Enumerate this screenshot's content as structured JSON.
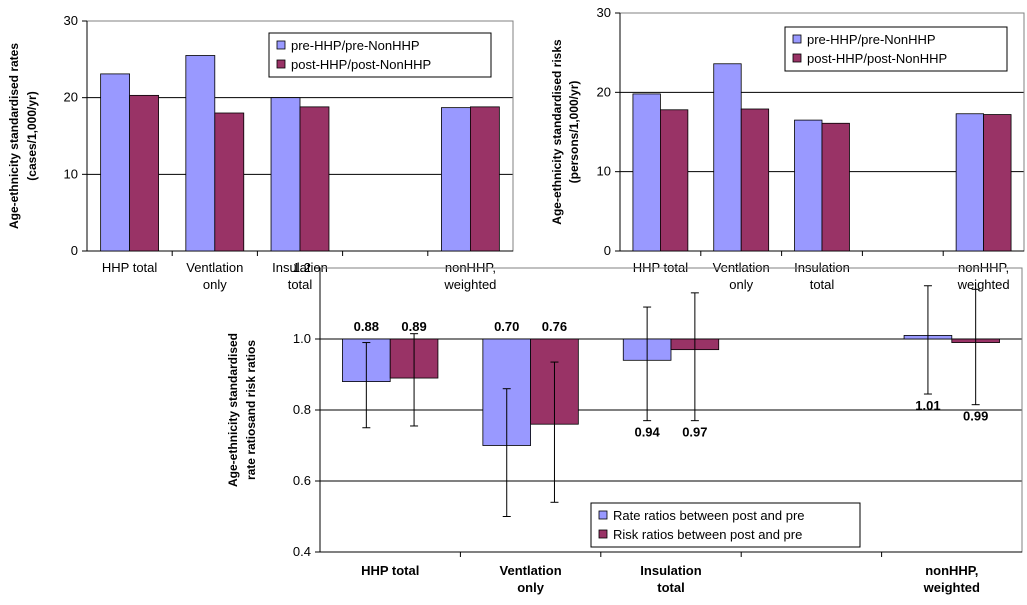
{
  "colors": {
    "pre": "#9999ff",
    "post": "#993366",
    "gridline": "#000000",
    "axis": "#808080"
  },
  "chart_data": [
    {
      "type": "bar",
      "ylabel_lines": [
        "Age-ethnicity standardised rates",
        "(cases/1,000/yr)"
      ],
      "ylim": [
        0,
        30
      ],
      "yticks": [
        0,
        10,
        20,
        30
      ],
      "grid": true,
      "legend_position": "top-right",
      "categories": [
        [
          "HHP total"
        ],
        [
          "Ventlation",
          "only"
        ],
        [
          "Insulation",
          "total"
        ],
        [
          ""
        ],
        [
          "nonHHP,",
          "weighted"
        ]
      ],
      "series": [
        {
          "name": "pre-HHP/pre-NonHHP",
          "values": [
            23.1,
            25.5,
            20.0,
            null,
            18.7
          ]
        },
        {
          "name": "post-HHP/post-NonHHP",
          "values": [
            20.3,
            18.0,
            18.8,
            null,
            18.8
          ]
        }
      ]
    },
    {
      "type": "bar",
      "ylabel_lines": [
        "Age-ethnicity standardised risks",
        "(persons/1,000/yr)"
      ],
      "ylim": [
        0,
        30
      ],
      "yticks": [
        0,
        10,
        20,
        30
      ],
      "grid": true,
      "legend_position": "top-right",
      "categories": [
        [
          "HHP total"
        ],
        [
          "Ventlation",
          "only"
        ],
        [
          "Insulation",
          "total"
        ],
        [
          ""
        ],
        [
          "nonHHP,",
          "weighted"
        ]
      ],
      "series": [
        {
          "name": "pre-HHP/pre-NonHHP",
          "values": [
            19.8,
            23.6,
            16.5,
            null,
            17.3
          ]
        },
        {
          "name": "post-HHP/post-NonHHP",
          "values": [
            17.8,
            17.9,
            16.1,
            null,
            17.2
          ]
        }
      ]
    },
    {
      "type": "bar",
      "ylabel_lines": [
        "Age-ethnicity standardised",
        "rate ratiosand risk ratios"
      ],
      "ylim": [
        0.4,
        1.2
      ],
      "yticks": [
        0.4,
        0.6,
        0.8,
        1.0,
        1.2
      ],
      "baseline": 1.0,
      "grid": true,
      "legend_position": "bottom-right",
      "categories": [
        [
          "HHP total"
        ],
        [
          "Ventlation",
          "only"
        ],
        [
          "Insulation",
          "total"
        ],
        [
          ""
        ],
        [
          "nonHHP,",
          "weighted"
        ]
      ],
      "series": [
        {
          "name": "Rate ratios between post and pre",
          "values": [
            0.88,
            0.7,
            0.94,
            null,
            1.01
          ],
          "labels": [
            "0.88",
            "0.70",
            "0.94",
            "",
            "1.01"
          ],
          "ci_low": [
            0.75,
            0.5,
            0.77,
            null,
            0.845
          ],
          "ci_high": [
            0.99,
            0.86,
            1.09,
            null,
            1.15
          ]
        },
        {
          "name": "Risk ratios between post and pre",
          "values": [
            0.89,
            0.76,
            0.97,
            null,
            0.99
          ],
          "labels": [
            "0.89",
            "0.76",
            "0.97",
            "",
            "0.99"
          ],
          "ci_low": [
            0.755,
            0.54,
            0.77,
            null,
            0.815
          ],
          "ci_high": [
            1.015,
            0.935,
            1.13,
            null,
            1.14
          ]
        }
      ]
    }
  ]
}
